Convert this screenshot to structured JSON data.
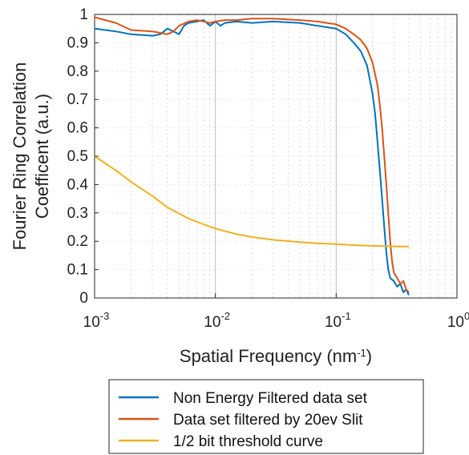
{
  "chart_data": {
    "type": "line",
    "xlabel": "Spatial Frequency (nm",
    "xlabel_sup": "-1",
    "xlabel_end": ")",
    "ylabel_line1": "Fourier Ring Correlation",
    "ylabel_line2": "Coefficent (a.u.)",
    "x_scale": "log",
    "xlim": [
      0.001,
      1
    ],
    "ylim": [
      0,
      1
    ],
    "grid": "on (dotted, log minor)",
    "legend_position": "bottom, outside plot",
    "y_ticks": [
      "0",
      "0.1",
      "0.2",
      "0.3",
      "0.4",
      "0.5",
      "0.6",
      "0.7",
      "0.8",
      "0.9",
      "1"
    ],
    "x_ticks": [
      {
        "base": "10",
        "exp": "-3"
      },
      {
        "base": "10",
        "exp": "-2"
      },
      {
        "base": "10",
        "exp": "-1"
      },
      {
        "base": "10",
        "exp": "0"
      }
    ],
    "series": [
      {
        "name": "Non Energy Filtered data set",
        "color": "#0072BD",
        "x": [
          0.001,
          0.0015,
          0.002,
          0.003,
          0.0035,
          0.004,
          0.0045,
          0.005,
          0.0055,
          0.006,
          0.007,
          0.008,
          0.009,
          0.01,
          0.011,
          0.012,
          0.015,
          0.02,
          0.03,
          0.05,
          0.07,
          0.1,
          0.12,
          0.14,
          0.16,
          0.18,
          0.2,
          0.21,
          0.22,
          0.23,
          0.24,
          0.25,
          0.26,
          0.27,
          0.28,
          0.3,
          0.32,
          0.34,
          0.36,
          0.38,
          0.4
        ],
        "y": [
          0.95,
          0.94,
          0.93,
          0.925,
          0.93,
          0.95,
          0.94,
          0.93,
          0.96,
          0.97,
          0.975,
          0.98,
          0.96,
          0.975,
          0.96,
          0.97,
          0.975,
          0.97,
          0.975,
          0.97,
          0.96,
          0.95,
          0.93,
          0.9,
          0.87,
          0.82,
          0.72,
          0.65,
          0.55,
          0.45,
          0.35,
          0.25,
          0.16,
          0.1,
          0.07,
          0.06,
          0.04,
          0.05,
          0.02,
          0.03,
          0.01
        ]
      },
      {
        "name": "Data set filtered by 20ev Slit",
        "color": "#D95319",
        "x": [
          0.001,
          0.0015,
          0.002,
          0.003,
          0.0035,
          0.004,
          0.0045,
          0.005,
          0.006,
          0.007,
          0.008,
          0.009,
          0.01,
          0.012,
          0.015,
          0.02,
          0.03,
          0.05,
          0.07,
          0.1,
          0.12,
          0.14,
          0.16,
          0.18,
          0.2,
          0.22,
          0.23,
          0.24,
          0.25,
          0.26,
          0.27,
          0.28,
          0.29,
          0.3,
          0.32,
          0.34,
          0.36,
          0.38,
          0.4
        ],
        "y": [
          0.99,
          0.97,
          0.945,
          0.94,
          0.935,
          0.93,
          0.94,
          0.96,
          0.975,
          0.98,
          0.975,
          0.97,
          0.975,
          0.98,
          0.98,
          0.985,
          0.985,
          0.98,
          0.975,
          0.965,
          0.95,
          0.93,
          0.91,
          0.88,
          0.83,
          0.75,
          0.68,
          0.6,
          0.5,
          0.4,
          0.3,
          0.2,
          0.13,
          0.09,
          0.07,
          0.05,
          0.06,
          0.03,
          0.02
        ]
      },
      {
        "name": "1/2 bit threshold curve",
        "color": "#EDB120",
        "x": [
          0.001,
          0.0015,
          0.002,
          0.003,
          0.004,
          0.006,
          0.008,
          0.01,
          0.015,
          0.02,
          0.03,
          0.05,
          0.07,
          0.1,
          0.15,
          0.2,
          0.3,
          0.4
        ],
        "y": [
          0.5,
          0.45,
          0.41,
          0.36,
          0.32,
          0.28,
          0.26,
          0.245,
          0.225,
          0.215,
          0.205,
          0.197,
          0.193,
          0.19,
          0.186,
          0.184,
          0.182,
          0.181
        ]
      }
    ]
  }
}
